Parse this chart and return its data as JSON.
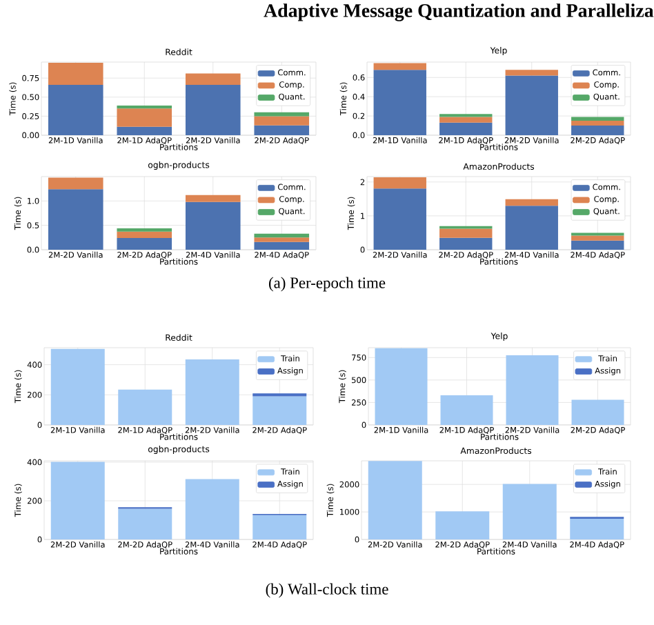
{
  "chart_data": [
    {
      "type": "bar",
      "stacked": true,
      "title": "Reddit",
      "xlabel": "Partitions",
      "ylabel": "Time (s)",
      "annotations": [
        "Adaptive Message Quantization and Paralleliza"
      ],
      "categories": [
        "2M-1D Vanilla",
        "2M-1D AdaQP",
        "2M-2D Vanilla",
        "2M-2D AdaQP"
      ],
      "series": [
        {
          "name": "Comm.",
          "color": "#4c72b0",
          "values": [
            0.66,
            0.11,
            0.66,
            0.13
          ]
        },
        {
          "name": "Comp.",
          "color": "#dd8452",
          "values": [
            0.29,
            0.24,
            0.15,
            0.12
          ]
        },
        {
          "name": "Quant.",
          "color": "#55a868",
          "values": [
            null,
            0.04,
            null,
            0.05
          ]
        }
      ],
      "ylim": [
        0,
        0.96
      ],
      "yticks": [
        {
          "value": 0,
          "label": "0.00"
        },
        {
          "value": 0.25,
          "label": "0.25"
        },
        {
          "value": 0.5,
          "label": "0.50"
        },
        {
          "value": 0.75,
          "label": "0.75"
        }
      ],
      "grid": true,
      "legend": "top right"
    },
    {
      "type": "bar",
      "stacked": true,
      "title": "Yelp",
      "xlabel": "Partitions",
      "ylabel": "Time (s)",
      "categories": [
        "2M-1D Vanilla",
        "2M-1D AdaQP",
        "2M-2D Vanilla",
        "2M-2D AdaQP"
      ],
      "series": [
        {
          "name": "Comm.",
          "color": "#4c72b0",
          "values": [
            0.68,
            0.13,
            0.62,
            0.1
          ]
        },
        {
          "name": "Comp.",
          "color": "#dd8452",
          "values": [
            0.07,
            0.06,
            0.06,
            0.05
          ]
        },
        {
          "name": "Quant.",
          "color": "#55a868",
          "values": [
            null,
            0.03,
            null,
            0.04
          ]
        }
      ],
      "ylim": [
        0,
        0.76
      ],
      "yticks": [
        {
          "value": 0,
          "label": "0.0"
        },
        {
          "value": 0.2,
          "label": "0.2"
        },
        {
          "value": 0.4,
          "label": "0.4"
        },
        {
          "value": 0.6,
          "label": "0.6"
        }
      ],
      "grid": true,
      "legend": "top right"
    },
    {
      "type": "bar",
      "stacked": true,
      "title": "ogbn-products",
      "xlabel": "Partitions",
      "ylabel": "Time (s)",
      "annotations": [
        "(a)  Per-epoch time"
      ],
      "categories": [
        "2M-2D Vanilla",
        "2M-2D AdaQP",
        "2M-4D Vanilla",
        "2M-4D AdaQP"
      ],
      "series": [
        {
          "name": "Comm.",
          "color": "#4c72b0",
          "values": [
            1.24,
            0.24,
            0.98,
            0.16
          ]
        },
        {
          "name": "Comp.",
          "color": "#dd8452",
          "values": [
            0.24,
            0.13,
            0.14,
            0.09
          ]
        },
        {
          "name": "Quant.",
          "color": "#55a868",
          "values": [
            null,
            0.07,
            null,
            0.08
          ]
        }
      ],
      "ylim": [
        0,
        1.5
      ],
      "yticks": [
        {
          "value": 0,
          "label": "0.0"
        },
        {
          "value": 0.5,
          "label": "0.5"
        },
        {
          "value": 1.0,
          "label": "1.0"
        }
      ],
      "grid": true,
      "legend": "top right"
    },
    {
      "type": "bar",
      "stacked": true,
      "title": "AmazonProducts",
      "xlabel": "Partitions",
      "ylabel": "Time (s)",
      "categories": [
        "2M-2D Vanilla",
        "2M-2D AdaQP",
        "2M-4D Vanilla",
        "2M-4D AdaQP"
      ],
      "series": [
        {
          "name": "Comm.",
          "color": "#4c72b0",
          "values": [
            1.81,
            0.35,
            1.3,
            0.27
          ]
        },
        {
          "name": "Comp.",
          "color": "#dd8452",
          "values": [
            0.33,
            0.27,
            0.19,
            0.15
          ]
        },
        {
          "name": "Quant.",
          "color": "#55a868",
          "values": [
            null,
            0.08,
            null,
            0.08
          ]
        }
      ],
      "ylim": [
        0,
        2.16
      ],
      "yticks": [
        0,
        1,
        2
      ],
      "grid": true,
      "legend": "top right"
    },
    {
      "type": "bar",
      "stacked": true,
      "title": "Reddit",
      "xlabel": "Partitions",
      "ylabel": "Time (s)",
      "categories": [
        "2M-1D Vanilla",
        "2M-1D AdaQP",
        "2M-2D Vanilla",
        "2M-2D AdaQP"
      ],
      "series": [
        {
          "name": "Train",
          "color": "#a1c9f4",
          "values": [
            505,
            235,
            435,
            190
          ]
        },
        {
          "name": "Assign",
          "color": "#4a70c5",
          "values": [
            null,
            null,
            null,
            20
          ]
        }
      ],
      "ylim": [
        0,
        513
      ],
      "yticks": [
        0,
        200,
        400
      ],
      "grid": true,
      "legend": "top right"
    },
    {
      "type": "bar",
      "stacked": true,
      "title": "Yelp",
      "xlabel": "Partitions",
      "ylabel": "Time (s)",
      "categories": [
        "2M-1D Vanilla",
        "2M-1D AdaQP",
        "2M-2D Vanilla",
        "2M-2D AdaQP"
      ],
      "series": [
        {
          "name": "Train",
          "color": "#a1c9f4",
          "values": [
            855,
            330,
            775,
            280
          ]
        },
        {
          "name": "Assign",
          "color": "#4a70c5",
          "values": [
            null,
            null,
            null,
            null
          ]
        }
      ],
      "ylim": [
        0,
        860
      ],
      "yticks": [
        0,
        250,
        500,
        750
      ],
      "grid": true,
      "legend": "top right"
    },
    {
      "type": "bar",
      "stacked": true,
      "title": "ogbn-products",
      "xlabel": "Partitions",
      "ylabel": "Time (s)",
      "annotations": [
        "(b)  Wall-clock time"
      ],
      "categories": [
        "2M-2D Vanilla",
        "2M-2D AdaQP",
        "2M-4D Vanilla",
        "2M-4D AdaQP"
      ],
      "series": [
        {
          "name": "Train",
          "color": "#a1c9f4",
          "values": [
            402,
            159,
            312,
            126
          ]
        },
        {
          "name": "Assign",
          "color": "#4a70c5",
          "values": [
            null,
            8,
            null,
            6
          ]
        }
      ],
      "ylim": [
        0,
        407
      ],
      "yticks": [
        0,
        200,
        400
      ],
      "grid": true,
      "legend": "top right"
    },
    {
      "type": "bar",
      "stacked": true,
      "title": "AmazonProducts",
      "xlabel": "Partitions",
      "ylabel": "Time (s)",
      "categories": [
        "2M-2D Vanilla",
        "2M-2D AdaQP",
        "2M-4D Vanilla",
        "2M-4D AdaQP"
      ],
      "series": [
        {
          "name": "Train",
          "color": "#a1c9f4",
          "values": [
            2850,
            1020,
            2020,
            750
          ]
        },
        {
          "name": "Assign",
          "color": "#4a70c5",
          "values": [
            null,
            null,
            null,
            70
          ]
        }
      ],
      "ylim": [
        0,
        2857
      ],
      "yticks": [
        0,
        1000,
        2000
      ],
      "grid": true,
      "legend": "top right"
    }
  ]
}
